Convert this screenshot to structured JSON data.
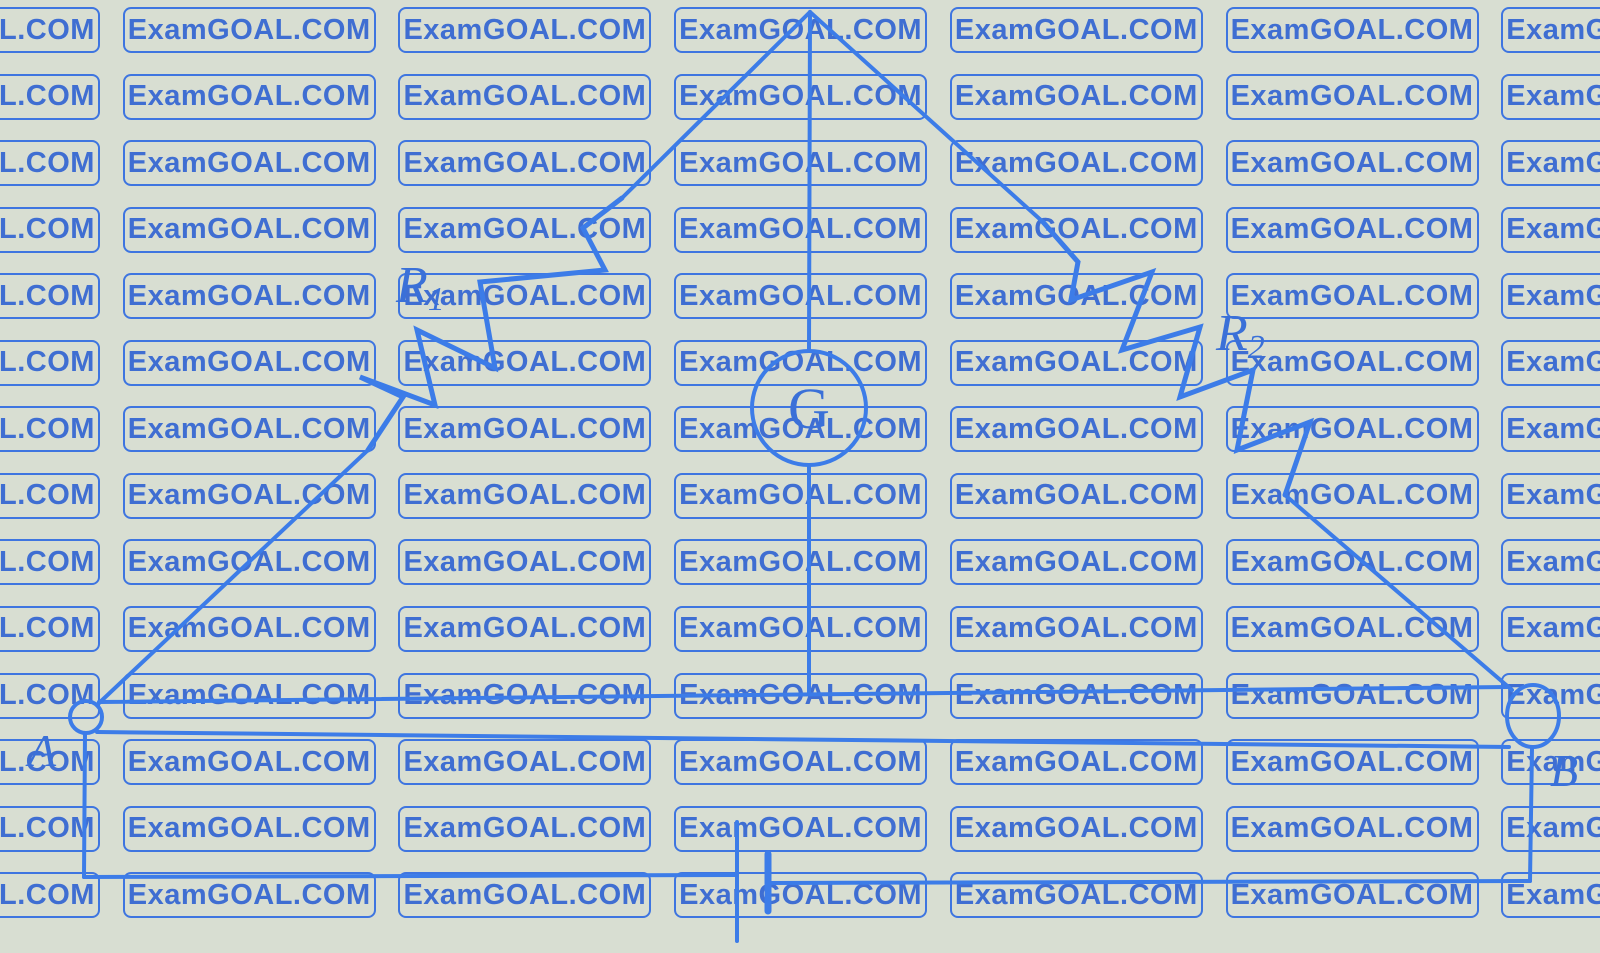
{
  "background_color": "#d8ded2",
  "watermark": {
    "text": "ExamGOAL.COM",
    "border_color": "#2e6ae2",
    "text_color": "#2f62d3",
    "rows": 14,
    "columns": 7
  },
  "diagram": {
    "description": "Wheatstone-bridge style circuit: two resistors from top apex down to terminals A and B, galvanometer G on the central branch, slide-wire between A and B, battery cell in the bottom loop",
    "colors": {
      "line": "#3c7ce8",
      "label": "#3a70d8"
    },
    "labels": {
      "resistor_left": {
        "base": "R",
        "sub": "1"
      },
      "resistor_right": {
        "base": "R",
        "sub": "2"
      },
      "galvanometer": "G",
      "terminal_left": "A",
      "terminal_right": "B"
    }
  }
}
